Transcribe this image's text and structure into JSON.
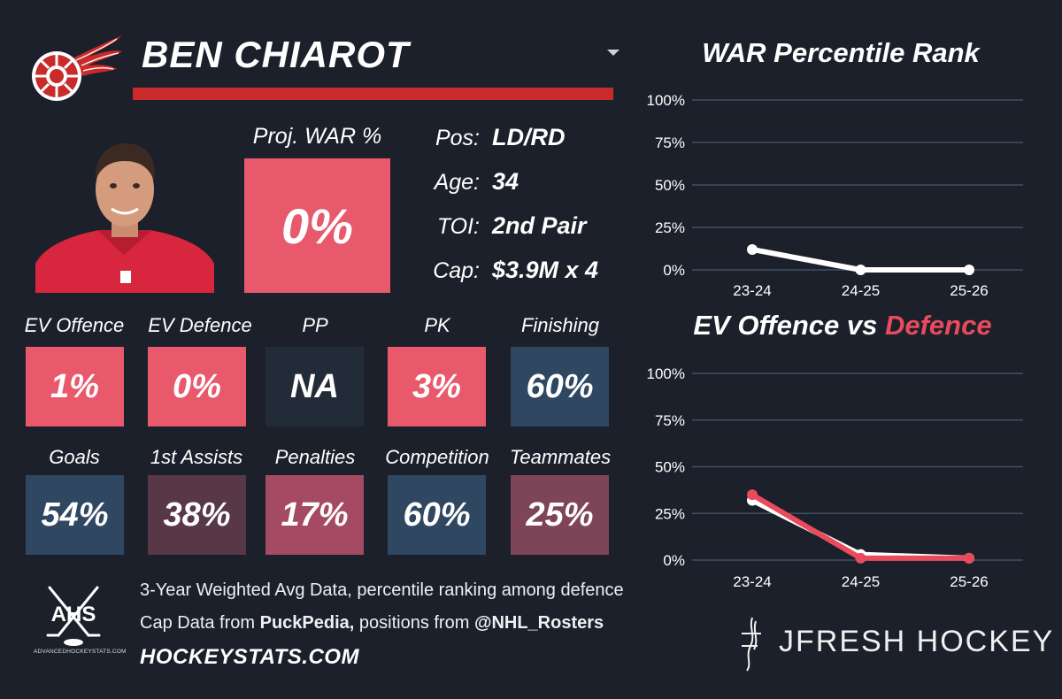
{
  "colors": {
    "background": "#1b202a",
    "red_bright": "#e8596c",
    "red_dark": "#c92a2a",
    "navy": "#2f4761",
    "slate": "#222c38",
    "maroon_light": "#a54a63",
    "maroon_dark": "#583847",
    "defence_line": "#ea4a5e",
    "offence_line": "#ffffff",
    "gridline": "#3f5164"
  },
  "header": {
    "team_logo_icon": "red-wings-winged-wheel-icon",
    "player_name": "BEN CHIAROT",
    "dropdown_icon": "chevron-down-icon"
  },
  "photo": {
    "icon": "player-headshot"
  },
  "proj_war": {
    "label": "Proj. WAR %",
    "value": "0%",
    "color": "#e8596c"
  },
  "info": [
    {
      "label": "Pos:",
      "value": "LD/RD"
    },
    {
      "label": "Age:",
      "value": "34"
    },
    {
      "label": "TOI:",
      "value": "2nd Pair"
    },
    {
      "label": "Cap:",
      "value": "$3.9M x 4"
    }
  ],
  "stats_row1": [
    {
      "label": "EV Offence",
      "value": "1%",
      "color": "#e8596c"
    },
    {
      "label": "EV Defence",
      "value": "0%",
      "color": "#e8596c"
    },
    {
      "label": "PP",
      "value": "NA",
      "color": "#222c38"
    },
    {
      "label": "PK",
      "value": "3%",
      "color": "#e8596c"
    },
    {
      "label": "Finishing",
      "value": "60%",
      "color": "#2f4761"
    }
  ],
  "stats_row2": [
    {
      "label": "Goals",
      "value": "54%",
      "color": "#2f4761"
    },
    {
      "label": "1st Assists",
      "value": "38%",
      "color": "#583847"
    },
    {
      "label": "Penalties",
      "value": "17%",
      "color": "#a54a63"
    },
    {
      "label": "Competition",
      "value": "60%",
      "color": "#2f4761"
    },
    {
      "label": "Teammates",
      "value": "25%",
      "color": "#7e4457"
    }
  ],
  "footer": {
    "line1": "3-Year Weighted Avg Data, percentile ranking among defence",
    "line2_prefix": "Cap Data from ",
    "line2_source": "PuckPedia,",
    "line2_mid": " positions from ",
    "line2_handle": "@NHL_Rosters",
    "site": "HOCKEYSTATS.COM",
    "ahs_logo_text": "AHS",
    "ahs_small_text": "ADVANCEDHOCKEYSTATS.COM",
    "jfresh_icon": "jf-monogram-icon",
    "jfresh_text": "JFRESH HOCKEY"
  },
  "chart_data": [
    {
      "type": "line",
      "title": "WAR Percentile Rank",
      "categories": [
        "23-24",
        "24-25",
        "25-26"
      ],
      "series": [
        {
          "name": "WAR",
          "values": [
            12,
            0,
            0
          ],
          "color": "#ffffff"
        }
      ],
      "ylim": [
        0,
        100
      ],
      "yticks": [
        "0%",
        "25%",
        "50%",
        "75%",
        "100%"
      ],
      "xlabel": "",
      "ylabel": ""
    },
    {
      "type": "line",
      "title_part1": "EV Offence vs ",
      "title_part2": "Defence",
      "categories": [
        "23-24",
        "24-25",
        "25-26"
      ],
      "series": [
        {
          "name": "EV Offence",
          "values": [
            32,
            3,
            1
          ],
          "color": "#ffffff"
        },
        {
          "name": "EV Defence",
          "values": [
            35,
            1,
            1
          ],
          "color": "#ea4a5e"
        }
      ],
      "ylim": [
        0,
        100
      ],
      "yticks": [
        "0%",
        "25%",
        "50%",
        "75%",
        "100%"
      ],
      "xlabel": "",
      "ylabel": ""
    }
  ]
}
